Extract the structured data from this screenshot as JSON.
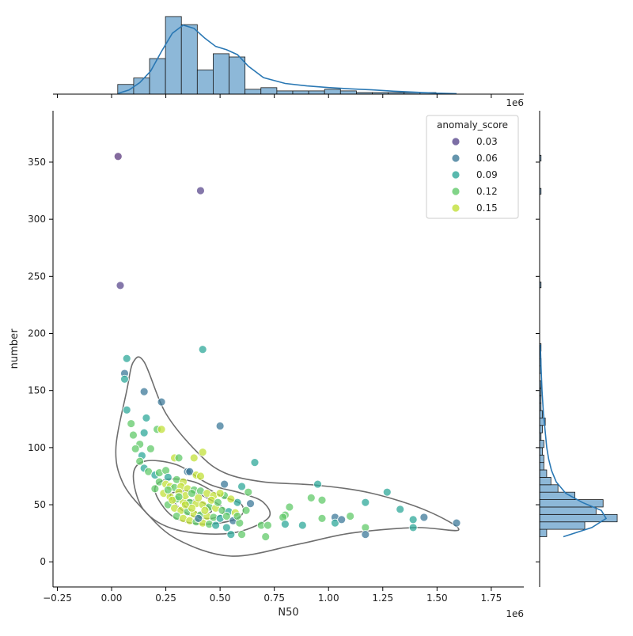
{
  "chart_data": {
    "type": "scatter",
    "title": "",
    "xlabel": "N50",
    "ylabel": "number",
    "x_exponent_label": "1e6",
    "top_marginal_exponent_label": "1e6",
    "xlim": [
      -0.27,
      1.9
    ],
    "ylim": [
      -22,
      395
    ],
    "x_ticks": [
      -0.25,
      0.0,
      0.25,
      0.5,
      0.75,
      1.0,
      1.25,
      1.5,
      1.75
    ],
    "x_tick_labels": [
      "−0.25",
      "0.00",
      "0.25",
      "0.50",
      "0.75",
      "1.00",
      "1.25",
      "1.50",
      "1.75"
    ],
    "y_ticks": [
      0,
      50,
      100,
      150,
      200,
      250,
      300,
      350
    ],
    "y_tick_labels": [
      "0",
      "50",
      "100",
      "150",
      "200",
      "250",
      "300",
      "350"
    ],
    "grid": false,
    "legend": {
      "title": "anomaly_score",
      "placement": "top-right",
      "entries": [
        {
          "label": "0.03",
          "color": "#5b4a8e"
        },
        {
          "label": "0.06",
          "color": "#3e7a99"
        },
        {
          "label": "0.09",
          "color": "#2fa89a"
        },
        {
          "label": "0.12",
          "color": "#62c96a"
        },
        {
          "label": "0.15",
          "color": "#c2e03a"
        }
      ]
    },
    "colors": {
      "hist_fill": "#8db8d8",
      "hist_edge": "#1a1a1a",
      "kde_line": "#2a78b4",
      "contour": "#6e6e6e",
      "point_edge": "#ffffff"
    },
    "points": [
      [
        0.03,
        355,
        0.02
      ],
      [
        0.41,
        325,
        0.03
      ],
      [
        0.04,
        242,
        0.03
      ],
      [
        0.42,
        186,
        0.09
      ],
      [
        0.06,
        165,
        0.06
      ],
      [
        0.06,
        160,
        0.09
      ],
      [
        0.07,
        178,
        0.09
      ],
      [
        0.15,
        149,
        0.06
      ],
      [
        0.23,
        140,
        0.06
      ],
      [
        0.5,
        119,
        0.06
      ],
      [
        0.07,
        133,
        0.09
      ],
      [
        0.16,
        126,
        0.09
      ],
      [
        0.09,
        121,
        0.12
      ],
      [
        0.21,
        116,
        0.12
      ],
      [
        0.23,
        116,
        0.15
      ],
      [
        0.1,
        111,
        0.12
      ],
      [
        0.15,
        113,
        0.09
      ],
      [
        0.13,
        103,
        0.12
      ],
      [
        0.11,
        99,
        0.12
      ],
      [
        0.18,
        99,
        0.12
      ],
      [
        0.14,
        93,
        0.09
      ],
      [
        0.13,
        88,
        0.12
      ],
      [
        0.15,
        82,
        0.09
      ],
      [
        0.17,
        79,
        0.12
      ],
      [
        0.2,
        76,
        0.09
      ],
      [
        0.22,
        78,
        0.12
      ],
      [
        0.25,
        80,
        0.12
      ],
      [
        0.29,
        91,
        0.15
      ],
      [
        0.31,
        91,
        0.12
      ],
      [
        0.38,
        91,
        0.15
      ],
      [
        0.42,
        96,
        0.15
      ],
      [
        0.66,
        87,
        0.09
      ],
      [
        0.35,
        79,
        0.06
      ],
      [
        0.36,
        79,
        0.06
      ],
      [
        0.39,
        76,
        0.15
      ],
      [
        0.41,
        75,
        0.15
      ],
      [
        0.26,
        74,
        0.09
      ],
      [
        0.3,
        72,
        0.12
      ],
      [
        0.33,
        70,
        0.15
      ],
      [
        0.22,
        70,
        0.12
      ],
      [
        0.25,
        68,
        0.15
      ],
      [
        0.27,
        66,
        0.15
      ],
      [
        0.29,
        65,
        0.12
      ],
      [
        0.32,
        66,
        0.15
      ],
      [
        0.35,
        64,
        0.15
      ],
      [
        0.38,
        63,
        0.12
      ],
      [
        0.41,
        62,
        0.12
      ],
      [
        0.44,
        60,
        0.15
      ],
      [
        0.47,
        58,
        0.15
      ],
      [
        0.52,
        68,
        0.06
      ],
      [
        0.6,
        66,
        0.09
      ],
      [
        0.63,
        61,
        0.12
      ],
      [
        0.64,
        51,
        0.06
      ],
      [
        0.58,
        52,
        0.09
      ],
      [
        0.52,
        58,
        0.12
      ],
      [
        0.55,
        55,
        0.15
      ],
      [
        0.24,
        60,
        0.15
      ],
      [
        0.27,
        57,
        0.15
      ],
      [
        0.3,
        55,
        0.12
      ],
      [
        0.33,
        53,
        0.15
      ],
      [
        0.36,
        52,
        0.12
      ],
      [
        0.39,
        51,
        0.15
      ],
      [
        0.42,
        50,
        0.15
      ],
      [
        0.45,
        48,
        0.12
      ],
      [
        0.48,
        47,
        0.15
      ],
      [
        0.51,
        45,
        0.12
      ],
      [
        0.54,
        44,
        0.09
      ],
      [
        0.57,
        43,
        0.15
      ],
      [
        0.26,
        50,
        0.12
      ],
      [
        0.29,
        47,
        0.15
      ],
      [
        0.32,
        45,
        0.15
      ],
      [
        0.35,
        44,
        0.12
      ],
      [
        0.38,
        42,
        0.15
      ],
      [
        0.41,
        41,
        0.12
      ],
      [
        0.44,
        40,
        0.15
      ],
      [
        0.47,
        39,
        0.12
      ],
      [
        0.5,
        38,
        0.09
      ],
      [
        0.53,
        40,
        0.12
      ],
      [
        0.56,
        36,
        0.06
      ],
      [
        0.59,
        34,
        0.12
      ],
      [
        0.3,
        40,
        0.12
      ],
      [
        0.33,
        38,
        0.15
      ],
      [
        0.36,
        36,
        0.15
      ],
      [
        0.39,
        35,
        0.12
      ],
      [
        0.42,
        34,
        0.15
      ],
      [
        0.45,
        33,
        0.12
      ],
      [
        0.48,
        32,
        0.09
      ],
      [
        0.53,
        30,
        0.09
      ],
      [
        0.55,
        24,
        0.09
      ],
      [
        0.6,
        24,
        0.12
      ],
      [
        0.69,
        32,
        0.12
      ],
      [
        0.72,
        32,
        0.12
      ],
      [
        0.71,
        22,
        0.12
      ],
      [
        0.8,
        41,
        0.12
      ],
      [
        0.82,
        48,
        0.12
      ],
      [
        0.79,
        39,
        0.12
      ],
      [
        0.8,
        33,
        0.09
      ],
      [
        0.88,
        32,
        0.09
      ],
      [
        0.92,
        56,
        0.12
      ],
      [
        0.95,
        68,
        0.09
      ],
      [
        0.97,
        54,
        0.12
      ],
      [
        0.97,
        38,
        0.12
      ],
      [
        1.03,
        39,
        0.06
      ],
      [
        1.03,
        34,
        0.09
      ],
      [
        1.06,
        37,
        0.06
      ],
      [
        1.1,
        40,
        0.12
      ],
      [
        1.17,
        52,
        0.09
      ],
      [
        1.17,
        30,
        0.12
      ],
      [
        1.17,
        24,
        0.06
      ],
      [
        1.27,
        61,
        0.09
      ],
      [
        1.33,
        46,
        0.09
      ],
      [
        1.39,
        37,
        0.09
      ],
      [
        1.39,
        30,
        0.09
      ],
      [
        1.44,
        39,
        0.06
      ],
      [
        1.59,
        34,
        0.06
      ],
      [
        0.2,
        64,
        0.12
      ],
      [
        0.34,
        58,
        0.15
      ],
      [
        0.37,
        60,
        0.12
      ],
      [
        0.46,
        54,
        0.15
      ],
      [
        0.49,
        52,
        0.12
      ],
      [
        0.62,
        45,
        0.12
      ],
      [
        0.58,
        40,
        0.12
      ],
      [
        0.28,
        54,
        0.15
      ],
      [
        0.31,
        61,
        0.15
      ],
      [
        0.4,
        56,
        0.15
      ],
      [
        0.43,
        45,
        0.15
      ],
      [
        0.37,
        47,
        0.15
      ],
      [
        0.34,
        50,
        0.15
      ],
      [
        0.4,
        38,
        0.06
      ],
      [
        0.5,
        60,
        0.15
      ],
      [
        0.26,
        63,
        0.12
      ],
      [
        0.31,
        57,
        0.12
      ]
    ],
    "top_histogram": {
      "bin_edges": [
        0.0283,
        0.1017,
        0.175,
        0.2483,
        0.3217,
        0.395,
        0.4683,
        0.5417,
        0.615,
        0.6883,
        0.7617,
        0.835,
        0.9083,
        0.9817,
        1.055,
        1.1283,
        1.2017,
        1.275,
        1.3483,
        1.4217,
        1.495,
        1.5683
      ],
      "counts": [
        6,
        10,
        22,
        48,
        43,
        15,
        25,
        23,
        3,
        4,
        2,
        2,
        2,
        3,
        2,
        1,
        1,
        1,
        1,
        1,
        0
      ]
    },
    "top_kde": {
      "x": [
        0.03,
        0.08,
        0.13,
        0.18,
        0.23,
        0.28,
        0.33,
        0.38,
        0.43,
        0.48,
        0.53,
        0.58,
        0.63,
        0.7,
        0.8,
        0.9,
        1.0,
        1.1,
        1.2,
        1.3,
        1.4,
        1.5,
        1.59
      ],
      "density": [
        0.5,
        2.5,
        7,
        14,
        26,
        37,
        42,
        40,
        34,
        29,
        27,
        24,
        17,
        10,
        6.5,
        5,
        4,
        3.2,
        2.6,
        1.8,
        1.2,
        0.6,
        0.3
      ]
    },
    "right_histogram": {
      "bin_edges": [
        22,
        28.5,
        35,
        41.5,
        48,
        54.5,
        61,
        67.5,
        74,
        80.5,
        87,
        93.5,
        100,
        106.5,
        113,
        119.5,
        126,
        132.5,
        139,
        145.5,
        152,
        158.5,
        165,
        171.5,
        178,
        184.5,
        191
      ],
      "counts": [
        5,
        32,
        55,
        40,
        45,
        25,
        13,
        8,
        5,
        3,
        3,
        2,
        3,
        1,
        2,
        4,
        2,
        1,
        1,
        1,
        1,
        0,
        1,
        1,
        0,
        1
      ]
    },
    "right_kde": {
      "y": [
        22,
        30,
        38,
        45,
        52,
        60,
        70,
        80,
        90,
        100,
        115,
        130,
        150,
        170,
        190
      ],
      "density": [
        10,
        22,
        28,
        26,
        18,
        11,
        7,
        5,
        3.8,
        3,
        2.3,
        1.6,
        1.0,
        0.6,
        0.3
      ]
    },
    "right_sparse_bins": [
      {
        "y0": 351,
        "y1": 356,
        "count": 1
      },
      {
        "y0": 322,
        "y1": 327,
        "count": 1
      },
      {
        "y0": 240,
        "y1": 245,
        "count": 1
      }
    ],
    "contours": [
      [
        [
          0.1,
          175
        ],
        [
          0.07,
          150
        ],
        [
          0.02,
          100
        ],
        [
          0.05,
          70
        ],
        [
          0.15,
          45
        ],
        [
          0.3,
          20
        ],
        [
          0.55,
          5
        ],
        [
          0.85,
          15
        ],
        [
          1.1,
          25
        ],
        [
          1.4,
          30
        ],
        [
          1.6,
          28
        ],
        [
          1.45,
          45
        ],
        [
          1.2,
          60
        ],
        [
          0.95,
          67
        ],
        [
          0.7,
          70
        ],
        [
          0.52,
          78
        ],
        [
          0.4,
          95
        ],
        [
          0.25,
          130
        ],
        [
          0.15,
          175
        ],
        [
          0.1,
          175
        ]
      ],
      [
        [
          0.1,
          75
        ],
        [
          0.15,
          45
        ],
        [
          0.3,
          28
        ],
        [
          0.55,
          25
        ],
        [
          0.72,
          38
        ],
        [
          0.7,
          52
        ],
        [
          0.6,
          60
        ],
        [
          0.45,
          68
        ],
        [
          0.3,
          85
        ],
        [
          0.15,
          88
        ],
        [
          0.1,
          75
        ]
      ],
      [
        [
          0.2,
          62
        ],
        [
          0.28,
          40
        ],
        [
          0.42,
          33
        ],
        [
          0.58,
          38
        ],
        [
          0.6,
          50
        ],
        [
          0.5,
          58
        ],
        [
          0.38,
          70
        ],
        [
          0.25,
          72
        ],
        [
          0.2,
          62
        ]
      ],
      [
        [
          0.27,
          58
        ],
        [
          0.35,
          42
        ],
        [
          0.46,
          38
        ],
        [
          0.52,
          45
        ],
        [
          0.45,
          55
        ],
        [
          0.35,
          62
        ],
        [
          0.27,
          58
        ]
      ],
      [
        [
          0.33,
          50
        ],
        [
          0.4,
          43
        ],
        [
          0.46,
          44
        ],
        [
          0.42,
          52
        ],
        [
          0.35,
          54
        ],
        [
          0.33,
          50
        ]
      ]
    ]
  }
}
